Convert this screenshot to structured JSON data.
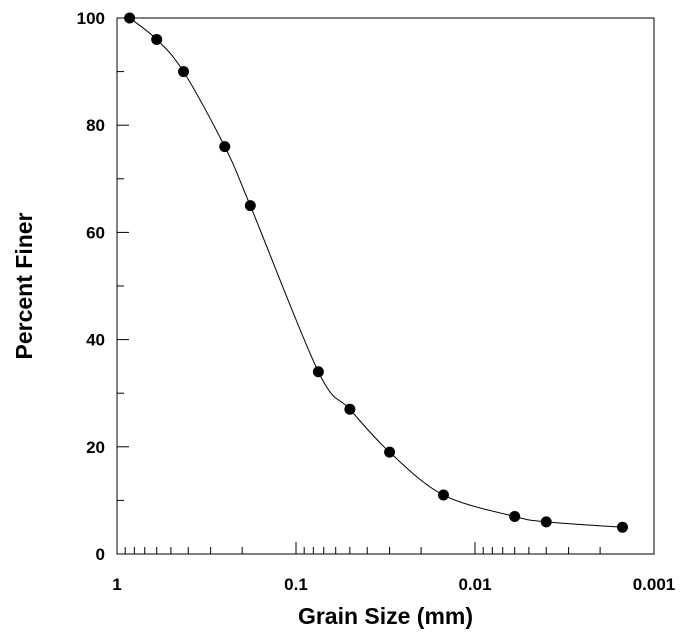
{
  "chart_data": {
    "type": "scatter",
    "title": "",
    "xlabel": "Grain Size (mm)",
    "ylabel": "Percent Finer",
    "x_scale": "log",
    "x_reversed": true,
    "xlim": [
      1,
      0.001
    ],
    "ylim": [
      0,
      100
    ],
    "x_ticks": [
      {
        "value": 1,
        "label": "1"
      },
      {
        "value": 0.1,
        "label": "0.1"
      },
      {
        "value": 0.01,
        "label": "0.01"
      },
      {
        "value": 0.001,
        "label": "0.001"
      }
    ],
    "y_ticks": [
      {
        "value": 0,
        "label": "0"
      },
      {
        "value": 20,
        "label": "20"
      },
      {
        "value": 40,
        "label": "40"
      },
      {
        "value": 60,
        "label": "60"
      },
      {
        "value": 80,
        "label": "80"
      },
      {
        "value": 100,
        "label": "100"
      }
    ],
    "grid": false,
    "legend": "none",
    "marker_color": "#000000",
    "line_color": "#000000",
    "smooth_curve": true,
    "x": [
      0.85,
      0.6,
      0.425,
      0.25,
      0.18,
      0.075,
      0.05,
      0.03,
      0.015,
      0.006,
      0.004,
      0.0015
    ],
    "y": [
      100,
      96,
      90,
      76,
      65,
      34,
      27,
      19,
      11,
      7,
      6,
      5
    ]
  }
}
